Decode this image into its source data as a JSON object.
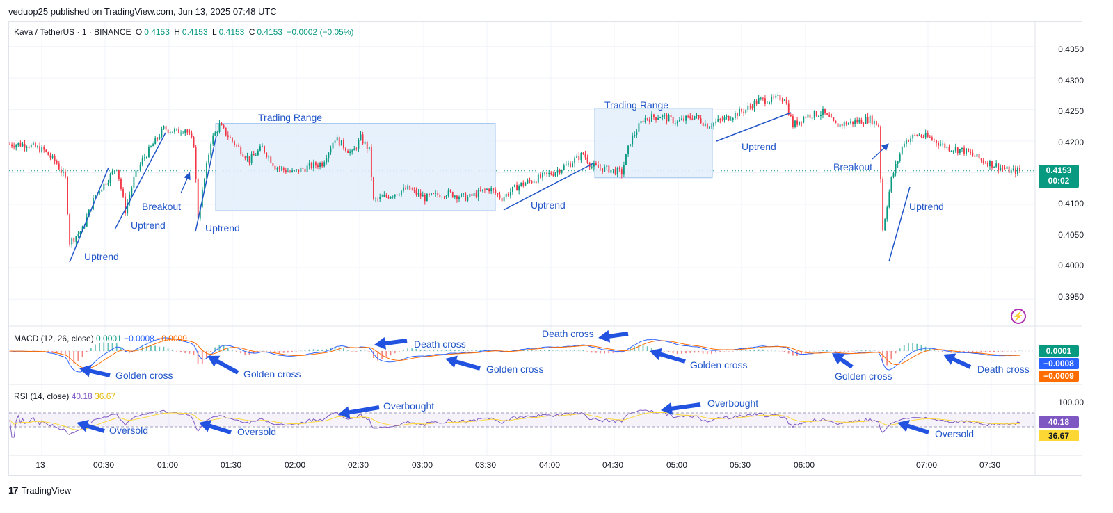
{
  "header": {
    "published": "veduop25 published on TradingView.com, Jun 13, 2025 07:48 UTC"
  },
  "legend": {
    "symbol": "Kava / TetherUS · 1 · BINANCE",
    "o_label": "O",
    "o_value": "0.4153",
    "h_label": "H",
    "h_value": "0.4153",
    "l_label": "L",
    "l_value": "0.4153",
    "c_label": "C",
    "c_value": "0.4153",
    "change": "−0.0002 (−0.05%)"
  },
  "macd_legend": {
    "title": "MACD (12, 26, close)",
    "hist": "0.0001",
    "macd": "−0.0008",
    "signal": "−0.0009"
  },
  "rsi_legend": {
    "title": "RSI (14, close)",
    "rsi": "40.18",
    "ma": "36.67"
  },
  "colors": {
    "up": "#089981",
    "down": "#f23645",
    "annotation": "#2156c9",
    "macd": "#2962ff",
    "signal": "#ff6d00",
    "rsi": "#7e57c2",
    "rsi_ma": "#fdd835",
    "box": "#e3eefb"
  },
  "price_axis": [
    "0.4350",
    "0.4300",
    "0.4250",
    "0.4200",
    "0.4150",
    "0.4100",
    "0.4050",
    "0.4000",
    "0.3950"
  ],
  "rsi_axis": [
    "100.00"
  ],
  "time_axis": [
    "13",
    "00:30",
    "01:00",
    "01:30",
    "02:00",
    "02:30",
    "03:00",
    "03:30",
    "04:00",
    "04:30",
    "05:00",
    "05:30",
    "06:00",
    "07:00",
    "07:30"
  ],
  "badges": {
    "price": "0.4153",
    "countdown": "00:02",
    "macd_hist": "0.0001",
    "macd": "−0.0008",
    "signal": "−0.0009",
    "rsi": "40.18",
    "rsi_ma": "36.67"
  },
  "annotations": {
    "trading_range_1": "Trading Range",
    "trading_range_2": "Trading Range",
    "uptrend_1": "Uptrend",
    "uptrend_2": "Uptrend",
    "uptrend_3": "Uptrend",
    "uptrend_4": "Uptrend",
    "uptrend_5": "Uptrend",
    "uptrend_6": "Uptrend",
    "breakout_1": "Breakout",
    "breakout_2": "Breakout",
    "golden_cross_1": "Golden cross",
    "golden_cross_2": "Golden cross",
    "golden_cross_3": "Golden cross",
    "golden_cross_4": "Golden cross",
    "golden_cross_5": "Golden cross",
    "death_cross_1": "Death cross",
    "death_cross_2": "Death cross",
    "death_cross_3": "Death cross",
    "overbought_1": "Overbought",
    "overbought_2": "Overbought",
    "oversold_1": "Oversold",
    "oversold_2": "Oversold",
    "oversold_3": "Oversold"
  },
  "chart_data": {
    "type": "candlestick",
    "symbol": "Kava / TetherUS",
    "interval": "1",
    "ylim": [
      0.3925,
      0.4375
    ],
    "last_price": 0.4153,
    "time_ticks": [
      "13",
      "00:30",
      "01:00",
      "01:30",
      "02:00",
      "02:30",
      "03:00",
      "03:30",
      "04:00",
      "04:30",
      "05:00",
      "05:30",
      "06:00",
      "07:00",
      "07:30"
    ],
    "price_path": [
      [
        0,
        0.4195
      ],
      [
        8,
        0.4195
      ],
      [
        16,
        0.4185
      ],
      [
        22,
        0.4165
      ],
      [
        26,
        0.414
      ],
      [
        28,
        0.404
      ],
      [
        34,
        0.406
      ],
      [
        40,
        0.4115
      ],
      [
        46,
        0.414
      ],
      [
        50,
        0.416
      ],
      [
        54,
        0.409
      ],
      [
        58,
        0.414
      ],
      [
        62,
        0.417
      ],
      [
        68,
        0.42
      ],
      [
        72,
        0.422
      ],
      [
        78,
        0.4215
      ],
      [
        82,
        0.422
      ],
      [
        86,
        0.4195
      ],
      [
        88,
        0.408
      ],
      [
        94,
        0.42
      ],
      [
        98,
        0.4225
      ],
      [
        104,
        0.42
      ],
      [
        112,
        0.417
      ],
      [
        118,
        0.419
      ],
      [
        124,
        0.416
      ],
      [
        132,
        0.415
      ],
      [
        140,
        0.416
      ],
      [
        146,
        0.4165
      ],
      [
        152,
        0.4205
      ],
      [
        160,
        0.418
      ],
      [
        164,
        0.4205
      ],
      [
        168,
        0.4185
      ],
      [
        170,
        0.4105
      ],
      [
        178,
        0.4115
      ],
      [
        186,
        0.4125
      ],
      [
        194,
        0.411
      ],
      [
        204,
        0.4118
      ],
      [
        214,
        0.411
      ],
      [
        224,
        0.4125
      ],
      [
        230,
        0.411
      ],
      [
        238,
        0.413
      ],
      [
        246,
        0.414
      ],
      [
        254,
        0.415
      ],
      [
        262,
        0.4165
      ],
      [
        268,
        0.418
      ],
      [
        272,
        0.416
      ],
      [
        280,
        0.4155
      ],
      [
        286,
        0.415
      ],
      [
        290,
        0.42
      ],
      [
        296,
        0.4235
      ],
      [
        304,
        0.424
      ],
      [
        312,
        0.423
      ],
      [
        320,
        0.424
      ],
      [
        326,
        0.4225
      ],
      [
        334,
        0.4235
      ],
      [
        344,
        0.425
      ],
      [
        350,
        0.4265
      ],
      [
        356,
        0.4265
      ],
      [
        362,
        0.427
      ],
      [
        366,
        0.4225
      ],
      [
        372,
        0.424
      ],
      [
        380,
        0.4245
      ],
      [
        386,
        0.4225
      ],
      [
        394,
        0.423
      ],
      [
        402,
        0.4235
      ],
      [
        406,
        0.4225
      ],
      [
        408,
        0.406
      ],
      [
        412,
        0.414
      ],
      [
        418,
        0.42
      ],
      [
        424,
        0.421
      ],
      [
        430,
        0.4205
      ],
      [
        438,
        0.419
      ],
      [
        446,
        0.4185
      ],
      [
        454,
        0.417
      ],
      [
        462,
        0.416
      ],
      [
        468,
        0.4152
      ],
      [
        472,
        0.4153
      ]
    ],
    "trading_ranges": [
      {
        "label": "Trading Range",
        "price_high": 0.4228,
        "price_low": 0.409
      },
      {
        "label": "Trading Range",
        "price_high": 0.4252,
        "price_low": 0.4142
      }
    ],
    "macd": {
      "fast": 12,
      "slow": 26,
      "source": "close",
      "histogram": 0.0001,
      "macd": -0.0008,
      "signal": -0.0009
    },
    "rsi": {
      "length": 14,
      "source": "close",
      "value": 40.18,
      "ma": 36.67,
      "upper_band": 70,
      "lower_band": 30
    },
    "annotations": [
      "Uptrend",
      "Breakout",
      "Trading Range",
      "Golden cross",
      "Death cross",
      "Overbought",
      "Oversold"
    ]
  }
}
